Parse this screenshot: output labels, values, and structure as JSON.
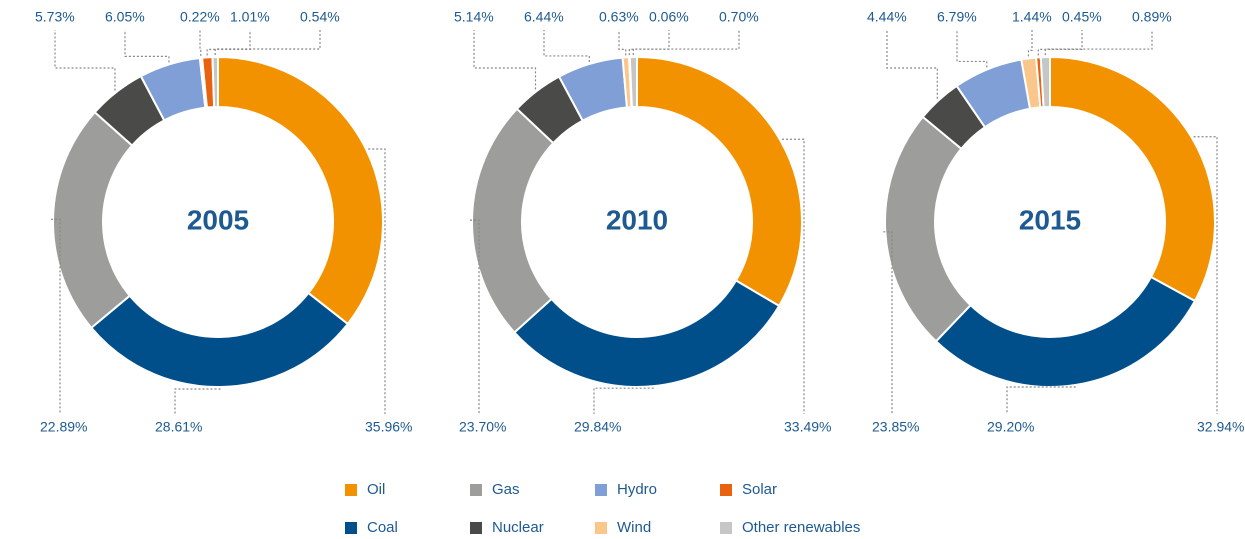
{
  "chart_data": [
    {
      "type": "pie",
      "title": "2005",
      "categories": [
        "Oil",
        "Coal",
        "Gas",
        "Nuclear",
        "Hydro",
        "Wind",
        "Solar",
        "Other renewables"
      ],
      "values": [
        35.96,
        28.61,
        22.89,
        5.73,
        6.05,
        0.22,
        1.01,
        0.54
      ],
      "value_labels": [
        "35.96%",
        "28.61%",
        "22.89%",
        "5.73%",
        "6.05%",
        "0.22%",
        "1.01%",
        "0.54%"
      ],
      "colors": [
        "#f39200",
        "#004f8b",
        "#9d9d9c",
        "#4a4a49",
        "#7f9fd6",
        "#f9c68b",
        "#e8620f",
        "#c6c6c6"
      ]
    },
    {
      "type": "pie",
      "title": "2010",
      "categories": [
        "Oil",
        "Coal",
        "Gas",
        "Nuclear",
        "Hydro",
        "Wind",
        "Solar",
        "Other renewables"
      ],
      "values": [
        33.49,
        29.84,
        23.7,
        5.14,
        6.44,
        0.63,
        0.06,
        0.7
      ],
      "value_labels": [
        "33.49%",
        "29.84%",
        "23.70%",
        "5.14%",
        "6.44%",
        "0.63%",
        "0.06%",
        "0.70%"
      ],
      "colors": [
        "#f39200",
        "#004f8b",
        "#9d9d9c",
        "#4a4a49",
        "#7f9fd6",
        "#f9c68b",
        "#e8620f",
        "#c6c6c6"
      ]
    },
    {
      "type": "pie",
      "title": "2015",
      "categories": [
        "Oil",
        "Coal",
        "Gas",
        "Nuclear",
        "Hydro",
        "Wind",
        "Solar",
        "Other renewables"
      ],
      "values": [
        32.94,
        29.2,
        23.85,
        4.44,
        6.79,
        1.44,
        0.45,
        0.89
      ],
      "value_labels": [
        "32.94%",
        "29.20%",
        "23.85%",
        "4.44%",
        "6.79%",
        "1.44%",
        "0.45%",
        "0.89%"
      ],
      "colors": [
        "#f39200",
        "#004f8b",
        "#9d9d9c",
        "#4a4a49",
        "#7f9fd6",
        "#f9c68b",
        "#e8620f",
        "#c6c6c6"
      ]
    }
  ]
}
